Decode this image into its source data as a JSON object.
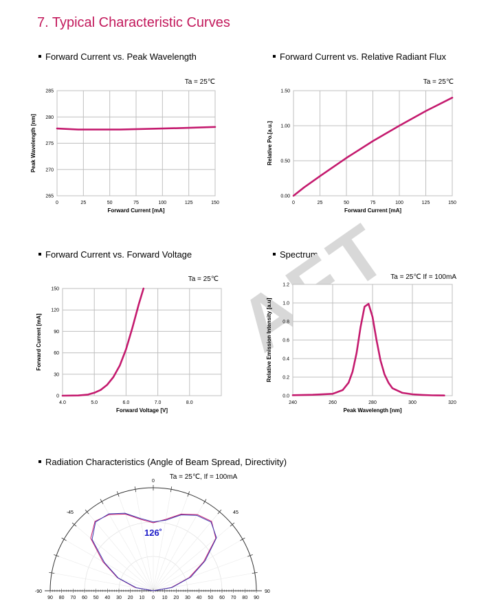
{
  "page": {
    "title": "7. Typical Characteristic Curves",
    "watermark_letters": [
      "A",
      "F",
      "T"
    ]
  },
  "sections": {
    "s1": "Forward Current vs. Peak Wavelength",
    "s2": "Forward Current vs. Relative Radiant Flux",
    "s3": "Forward Current vs. Forward Voltage",
    "s4": "Spectrum",
    "s5": "Radiation Characteristics (Angle of Beam Spread, Directivity)"
  },
  "colors": {
    "accent": "#c2185b",
    "curve": "#c41a6e",
    "grid": "#bfbfbf",
    "polar_blue": "#3a3ab0",
    "label_blue": "#1a1ac8"
  },
  "chart_data": [
    {
      "id": "wavelength",
      "type": "line",
      "annotation": "Ta = 25℃",
      "xlabel": "Forward Current [mA]",
      "ylabel": "Peak Wavelength [nm]",
      "xlim": [
        0,
        150
      ],
      "ylim": [
        265,
        285
      ],
      "xticks": [
        0,
        25,
        50,
        75,
        100,
        125,
        150
      ],
      "yticks": [
        265,
        270,
        275,
        280,
        285
      ],
      "grid": true,
      "x": [
        0,
        20,
        40,
        60,
        80,
        100,
        120,
        150
      ],
      "y": [
        277.8,
        277.6,
        277.6,
        277.6,
        277.7,
        277.8,
        277.9,
        278.1
      ]
    },
    {
      "id": "flux",
      "type": "line",
      "annotation": "Ta = 25℃",
      "xlabel": "Forward Current [mA]",
      "ylabel": "Relative Po.[a.u.]",
      "xlim": [
        0,
        150
      ],
      "ylim": [
        0,
        1.5
      ],
      "xticks": [
        0,
        25,
        50,
        75,
        100,
        125,
        150
      ],
      "yticks": [
        "0.00",
        "0.50",
        "1.00",
        "1.50"
      ],
      "grid": true,
      "x": [
        0,
        10,
        25,
        50,
        75,
        100,
        125,
        150
      ],
      "y": [
        0,
        0.12,
        0.28,
        0.54,
        0.78,
        1.0,
        1.21,
        1.4
      ]
    },
    {
      "id": "voltage",
      "type": "line",
      "annotation": "Ta = 25℃",
      "xlabel": "Forward Voltage [V]",
      "ylabel": "Forward Current [mA]",
      "xlim": [
        4.0,
        9.0
      ],
      "ylim": [
        0,
        150
      ],
      "xticks": [
        "4.0",
        "5.0",
        "6.0",
        "7.0",
        "8.0"
      ],
      "yticks": [
        0,
        30,
        60,
        90,
        120,
        150
      ],
      "grid": true,
      "x": [
        4.0,
        4.5,
        4.8,
        5.0,
        5.2,
        5.4,
        5.6,
        5.8,
        6.0,
        6.2,
        6.4,
        6.55
      ],
      "y": [
        0,
        0.3,
        1.5,
        4,
        8,
        15,
        26,
        42,
        65,
        95,
        128,
        150
      ]
    },
    {
      "id": "spectrum",
      "type": "line",
      "annotation": "Ta = 25℃   If = 100mA",
      "xlabel": "Peak Wavelength [nm]",
      "ylabel": "Relative Emission Intensity [a.u]",
      "xlim": [
        240,
        320
      ],
      "ylim": [
        0,
        1.2
      ],
      "xticks": [
        240,
        260,
        280,
        300,
        320
      ],
      "yticks": [
        "0.0",
        "0.2",
        "0.4",
        "0.6",
        "0.8",
        "1.0",
        "1.2"
      ],
      "grid": true,
      "x": [
        240,
        250,
        260,
        265,
        268,
        270,
        272,
        274,
        276,
        278,
        280,
        282,
        284,
        286,
        288,
        290,
        295,
        300,
        305,
        310,
        316
      ],
      "y": [
        0.005,
        0.01,
        0.02,
        0.06,
        0.14,
        0.26,
        0.46,
        0.74,
        0.96,
        0.99,
        0.85,
        0.6,
        0.38,
        0.23,
        0.14,
        0.08,
        0.03,
        0.015,
        0.008,
        0.004,
        0.002
      ]
    },
    {
      "id": "radiation",
      "type": "polar",
      "annotation": "Ta = 25℃, If = 100mA",
      "beam_angle": "126˚",
      "angle_labels": [
        "0",
        "-45",
        "45",
        "-90",
        "90"
      ],
      "radial_ticks_left": [
        90,
        80,
        70,
        60,
        50,
        40,
        30,
        20,
        10,
        0
      ],
      "radial_ticks_right": [
        10,
        20,
        30,
        40,
        50,
        60,
        70,
        80,
        90
      ],
      "series": [
        {
          "angles": [
            -90,
            -80,
            -70,
            -60,
            -50,
            -40,
            -30,
            -20,
            -10,
            0,
            10,
            20,
            30,
            40,
            50,
            60,
            70,
            80,
            90
          ],
          "values": [
            0.0,
            0.2,
            0.42,
            0.64,
            0.9,
            1.0,
            0.97,
            0.9,
            0.8,
            0.75,
            0.8,
            0.9,
            0.97,
            1.0,
            0.9,
            0.64,
            0.42,
            0.2,
            0.0
          ]
        },
        {
          "angles": [
            -90,
            -80,
            -70,
            -60,
            -50,
            -40,
            -30,
            -20,
            -10,
            0,
            10,
            20,
            30,
            40,
            50,
            60,
            70,
            80,
            90
          ],
          "values": [
            0.0,
            0.19,
            0.41,
            0.62,
            0.88,
            0.99,
            0.98,
            0.91,
            0.81,
            0.76,
            0.79,
            0.89,
            0.96,
            0.99,
            0.91,
            0.66,
            0.44,
            0.21,
            0.0
          ]
        }
      ]
    }
  ]
}
